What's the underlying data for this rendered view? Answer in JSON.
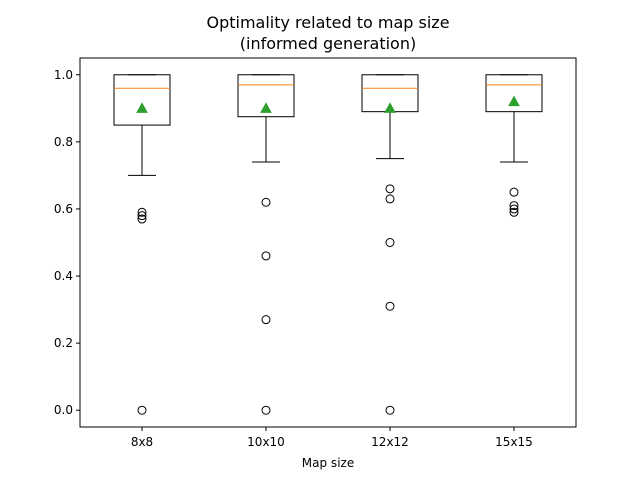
{
  "chart_data": {
    "type": "box",
    "title_line1": "Optimality related to map size",
    "title_line2": "(informed generation)",
    "xlabel": "Map size",
    "ylabel": "",
    "ylim": [
      -0.05,
      1.05
    ],
    "yticks": [
      0.0,
      0.2,
      0.4,
      0.6,
      0.8,
      1.0
    ],
    "ytick_labels": [
      "0.0",
      "0.2",
      "0.4",
      "0.6",
      "0.8",
      "1.0"
    ],
    "grid": false,
    "colors": {
      "box": "#000000",
      "median": "#ff7f0e",
      "mean": "#2ca02c",
      "flier": "#000000"
    },
    "categories": [
      "8x8",
      "10x10",
      "12x12",
      "15x15"
    ],
    "boxes": [
      {
        "category": "8x8",
        "whisker_low": 0.7,
        "q1": 0.85,
        "median": 0.96,
        "q3": 1.0,
        "whisker_high": 1.0,
        "mean": 0.9,
        "fliers": [
          0.59,
          0.58,
          0.57,
          0.0
        ]
      },
      {
        "category": "10x10",
        "whisker_low": 0.74,
        "q1": 0.875,
        "median": 0.97,
        "q3": 1.0,
        "whisker_high": 1.0,
        "mean": 0.9,
        "fliers": [
          0.62,
          0.46,
          0.27,
          0.0
        ]
      },
      {
        "category": "12x12",
        "whisker_low": 0.75,
        "q1": 0.89,
        "median": 0.96,
        "q3": 1.0,
        "whisker_high": 1.0,
        "mean": 0.9,
        "fliers": [
          0.66,
          0.63,
          0.5,
          0.31,
          0.0
        ]
      },
      {
        "category": "15x15",
        "whisker_low": 0.74,
        "q1": 0.89,
        "median": 0.97,
        "q3": 1.0,
        "whisker_high": 1.0,
        "mean": 0.92,
        "fliers": [
          0.65,
          0.61,
          0.6,
          0.59
        ]
      }
    ]
  }
}
